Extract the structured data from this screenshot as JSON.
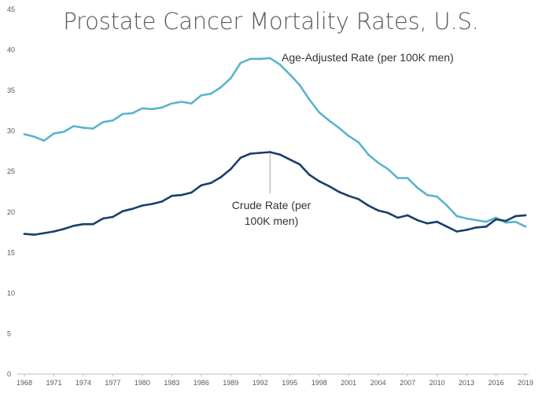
{
  "chart_data": {
    "type": "line",
    "title": "Prostate Cancer Mortality Rates, U.S.",
    "xlabel": "",
    "ylabel": "",
    "ylim": [
      0,
      45
    ],
    "yticks": [
      "0",
      "5",
      "10",
      "15",
      "20",
      "25",
      "30",
      "35",
      "40",
      "45"
    ],
    "xlim": [
      1968,
      2019
    ],
    "xticks": [
      "1968",
      "1971",
      "1974",
      "1977",
      "1980",
      "1983",
      "1986",
      "1989",
      "1992",
      "1995",
      "1998",
      "2001",
      "2004",
      "2007",
      "2010",
      "2013",
      "2016",
      "2019"
    ],
    "grid": false,
    "x": [
      1968,
      1969,
      1970,
      1971,
      1972,
      1973,
      1974,
      1975,
      1976,
      1977,
      1978,
      1979,
      1980,
      1981,
      1982,
      1983,
      1984,
      1985,
      1986,
      1987,
      1988,
      1989,
      1990,
      1991,
      1992,
      1993,
      1994,
      1995,
      1996,
      1997,
      1998,
      1999,
      2000,
      2001,
      2002,
      2003,
      2004,
      2005,
      2006,
      2007,
      2008,
      2009,
      2010,
      2011,
      2012,
      2013,
      2014,
      2015,
      2016,
      2017,
      2018,
      2019
    ],
    "series": [
      {
        "name": "Age-Adjusted Rate (per 100K men)",
        "color": "#5ab4cc",
        "values": [
          29.6,
          29.3,
          28.8,
          29.7,
          29.9,
          30.6,
          30.4,
          30.3,
          31.1,
          31.3,
          32.1,
          32.2,
          32.8,
          32.7,
          32.9,
          33.4,
          33.6,
          33.4,
          34.4,
          34.6,
          35.4,
          36.5,
          38.4,
          38.9,
          38.9,
          39.0,
          38.2,
          37.0,
          35.7,
          33.9,
          32.3,
          31.3,
          30.4,
          29.4,
          28.6,
          27.1,
          26.1,
          25.3,
          24.2,
          24.2,
          23.0,
          22.1,
          21.9,
          20.8,
          19.5,
          19.2,
          19.0,
          18.8,
          19.3,
          18.7,
          18.8,
          18.2
        ]
      },
      {
        "name": "Crude Rate (per 100K men)",
        "color": "#1a3e6a",
        "values": [
          17.3,
          17.2,
          17.4,
          17.6,
          17.9,
          18.3,
          18.5,
          18.5,
          19.2,
          19.4,
          20.1,
          20.4,
          20.8,
          21.0,
          21.3,
          22.0,
          22.1,
          22.4,
          23.3,
          23.6,
          24.3,
          25.3,
          26.7,
          27.2,
          27.3,
          27.4,
          27.1,
          26.5,
          25.9,
          24.6,
          23.8,
          23.2,
          22.5,
          22.0,
          21.6,
          20.8,
          20.2,
          19.9,
          19.3,
          19.6,
          19.0,
          18.6,
          18.8,
          18.2,
          17.6,
          17.8,
          18.1,
          18.2,
          19.1,
          18.9,
          19.5,
          19.6
        ]
      }
    ],
    "annotations": [
      {
        "series": 0,
        "lines": [
          "Age-Adjusted Rate (per 100K men)"
        ]
      },
      {
        "series": 1,
        "lines": [
          "Crude Rate (per",
          "100K men)"
        ]
      }
    ]
  }
}
